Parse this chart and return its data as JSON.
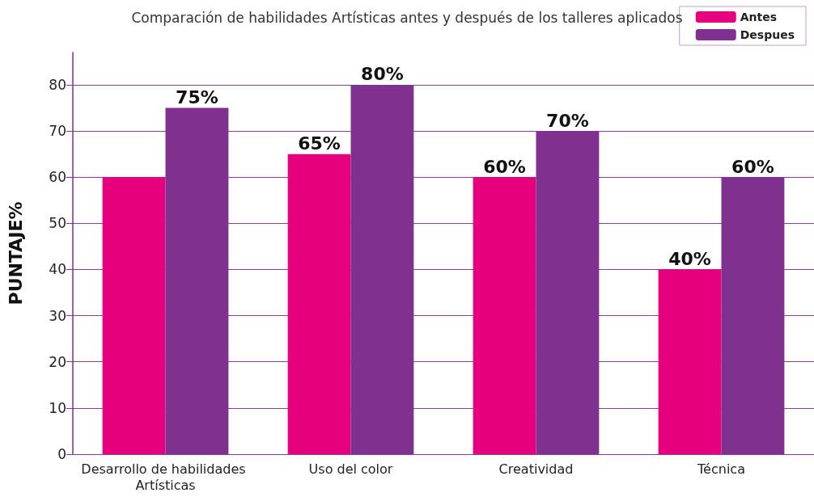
{
  "chart_data": {
    "type": "bar",
    "title": "Comparación de habilidades Artísticas antes y después de los talleres aplicados",
    "ylabel": "PUNTAJE%",
    "categories": [
      "Desarrollo de habilidades Artísticas",
      "Uso del color",
      "Creatividad",
      "Técnica"
    ],
    "series": [
      {
        "name": "Antes",
        "color": "#e6007e",
        "values": [
          60,
          65,
          60,
          40
        ],
        "value_labels": [
          null,
          "65%",
          "60%",
          "40%"
        ]
      },
      {
        "name": "Despues",
        "color": "#7e318e",
        "values": [
          75,
          80,
          70,
          60
        ],
        "value_labels": [
          "75%",
          "80%",
          "70%",
          "60%"
        ]
      }
    ],
    "ylim": [
      0,
      87
    ],
    "yticks": [
      0,
      10,
      20,
      30,
      40,
      50,
      60,
      70,
      80
    ],
    "grid": "y",
    "legend": "top right"
  }
}
